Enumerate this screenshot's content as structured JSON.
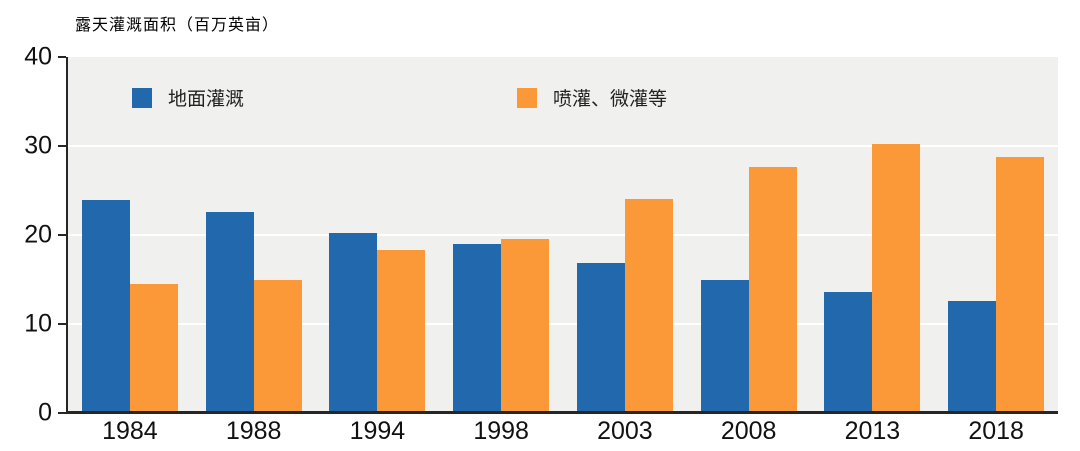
{
  "chart_data": {
    "type": "bar",
    "title": "露天灌溉面积（百万英亩）",
    "categories": [
      "1984",
      "1988",
      "1994",
      "1998",
      "2003",
      "2008",
      "2013",
      "2018"
    ],
    "series": [
      {
        "key": "surface",
        "name": "地面灌溉",
        "color": "#2268ad",
        "values": [
          23.9,
          22.6,
          20.2,
          19.0,
          16.9,
          15.0,
          13.6,
          12.6
        ]
      },
      {
        "key": "sprinkler-micro",
        "name": "喷灌、微灌等",
        "color": "#fb9838",
        "values": [
          14.5,
          15.0,
          18.3,
          19.5,
          24.1,
          27.6,
          30.2,
          28.8
        ]
      }
    ],
    "xlabel": "",
    "ylabel": "露天灌溉面积（百万英亩）",
    "ylim": [
      0,
      40
    ],
    "yticks": [
      0,
      10,
      20,
      30,
      40
    ],
    "gridlines": [
      10,
      20,
      30
    ],
    "grid": true,
    "legend_position": "top-inside",
    "plot_background": "#f0f0ee",
    "axis_color": "#262626",
    "label_color": "#111111"
  }
}
